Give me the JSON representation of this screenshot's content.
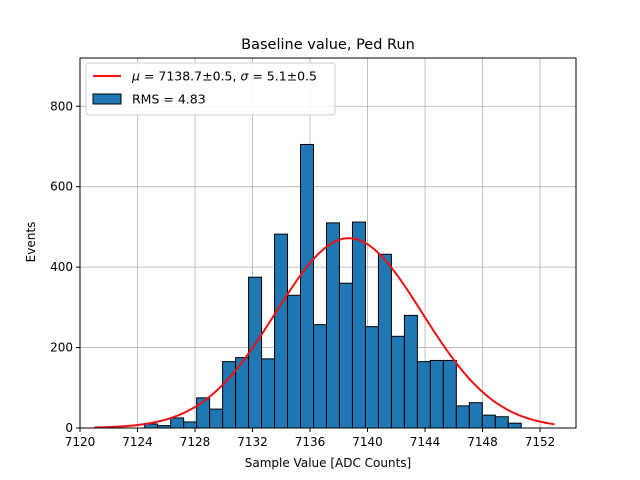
{
  "chart_data": {
    "type": "bar",
    "title": "Baseline value, Ped Run",
    "xlabel": "Sample Value [ADC Counts]",
    "ylabel": "Events",
    "xlim": [
      7120.0,
      7154.5
    ],
    "ylim": [
      0,
      920
    ],
    "xticks": [
      7120,
      7124,
      7128,
      7132,
      7136,
      7140,
      7144,
      7148,
      7152
    ],
    "yticks": [
      0,
      200,
      400,
      600,
      800
    ],
    "grid": true,
    "legend_position": "top-left",
    "bar_color": "#1f77b4",
    "fit_color": "#ee1111",
    "histogram": {
      "name": "RMS = 4.83",
      "bin_start": 7124.5,
      "bin_width": 0.9032,
      "counts": [
        10,
        6,
        25,
        15,
        75,
        47,
        165,
        175,
        375,
        172,
        482,
        330,
        705,
        257,
        510,
        360,
        512,
        252,
        432,
        228,
        280,
        165,
        168,
        168,
        55,
        63,
        32,
        28,
        12
      ]
    },
    "fit": {
      "name": "μ = 7138.7±0.5, σ = 5.1±0.5",
      "legend_parts": {
        "mu_symbol": "μ",
        "mu_text": " = 7138.7±0.5, ",
        "sigma_symbol": "σ",
        "sigma_text": " = 5.1±0.5"
      },
      "mu": 7138.7,
      "sigma": 5.1,
      "amplitude": 472,
      "x_range": [
        7121,
        7153
      ]
    }
  }
}
